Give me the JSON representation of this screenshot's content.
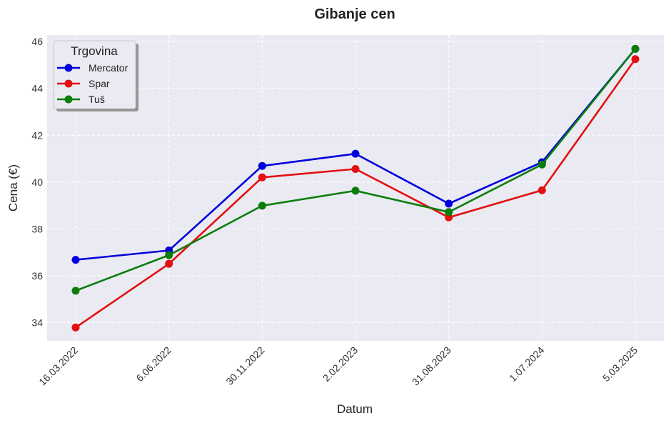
{
  "chart_data": {
    "type": "line",
    "title": "Gibanje cen",
    "xlabel": "Datum",
    "ylabel": "Cena (€)",
    "categories": [
      "16.03.2022",
      "6.06.2022",
      "30.11.2022",
      "2.02.2023",
      "31.08.2023",
      "1.07.2024",
      "5.03.2025"
    ],
    "yticks": [
      34,
      36,
      38,
      40,
      42,
      44,
      46
    ],
    "ylim": [
      33.22,
      46.28
    ],
    "grid": true,
    "legend": {
      "title": "Trgovina",
      "position": "upper left"
    },
    "series": [
      {
        "name": "Mercator",
        "color": "#0000dd",
        "values": [
          36.68,
          37.08,
          40.69,
          41.21,
          39.08,
          40.85,
          45.69
        ]
      },
      {
        "name": "Spar",
        "color": "#e31010",
        "values": [
          33.79,
          36.51,
          40.2,
          40.56,
          38.49,
          39.65,
          45.25
        ]
      },
      {
        "name": "Tuš",
        "color": "#0a7d0a",
        "values": [
          35.36,
          36.88,
          38.99,
          39.63,
          38.72,
          40.75,
          45.69
        ]
      }
    ]
  },
  "colors": {
    "plot_background": "#eaeaf2",
    "grid": "#ffffff",
    "text": "#222222"
  }
}
